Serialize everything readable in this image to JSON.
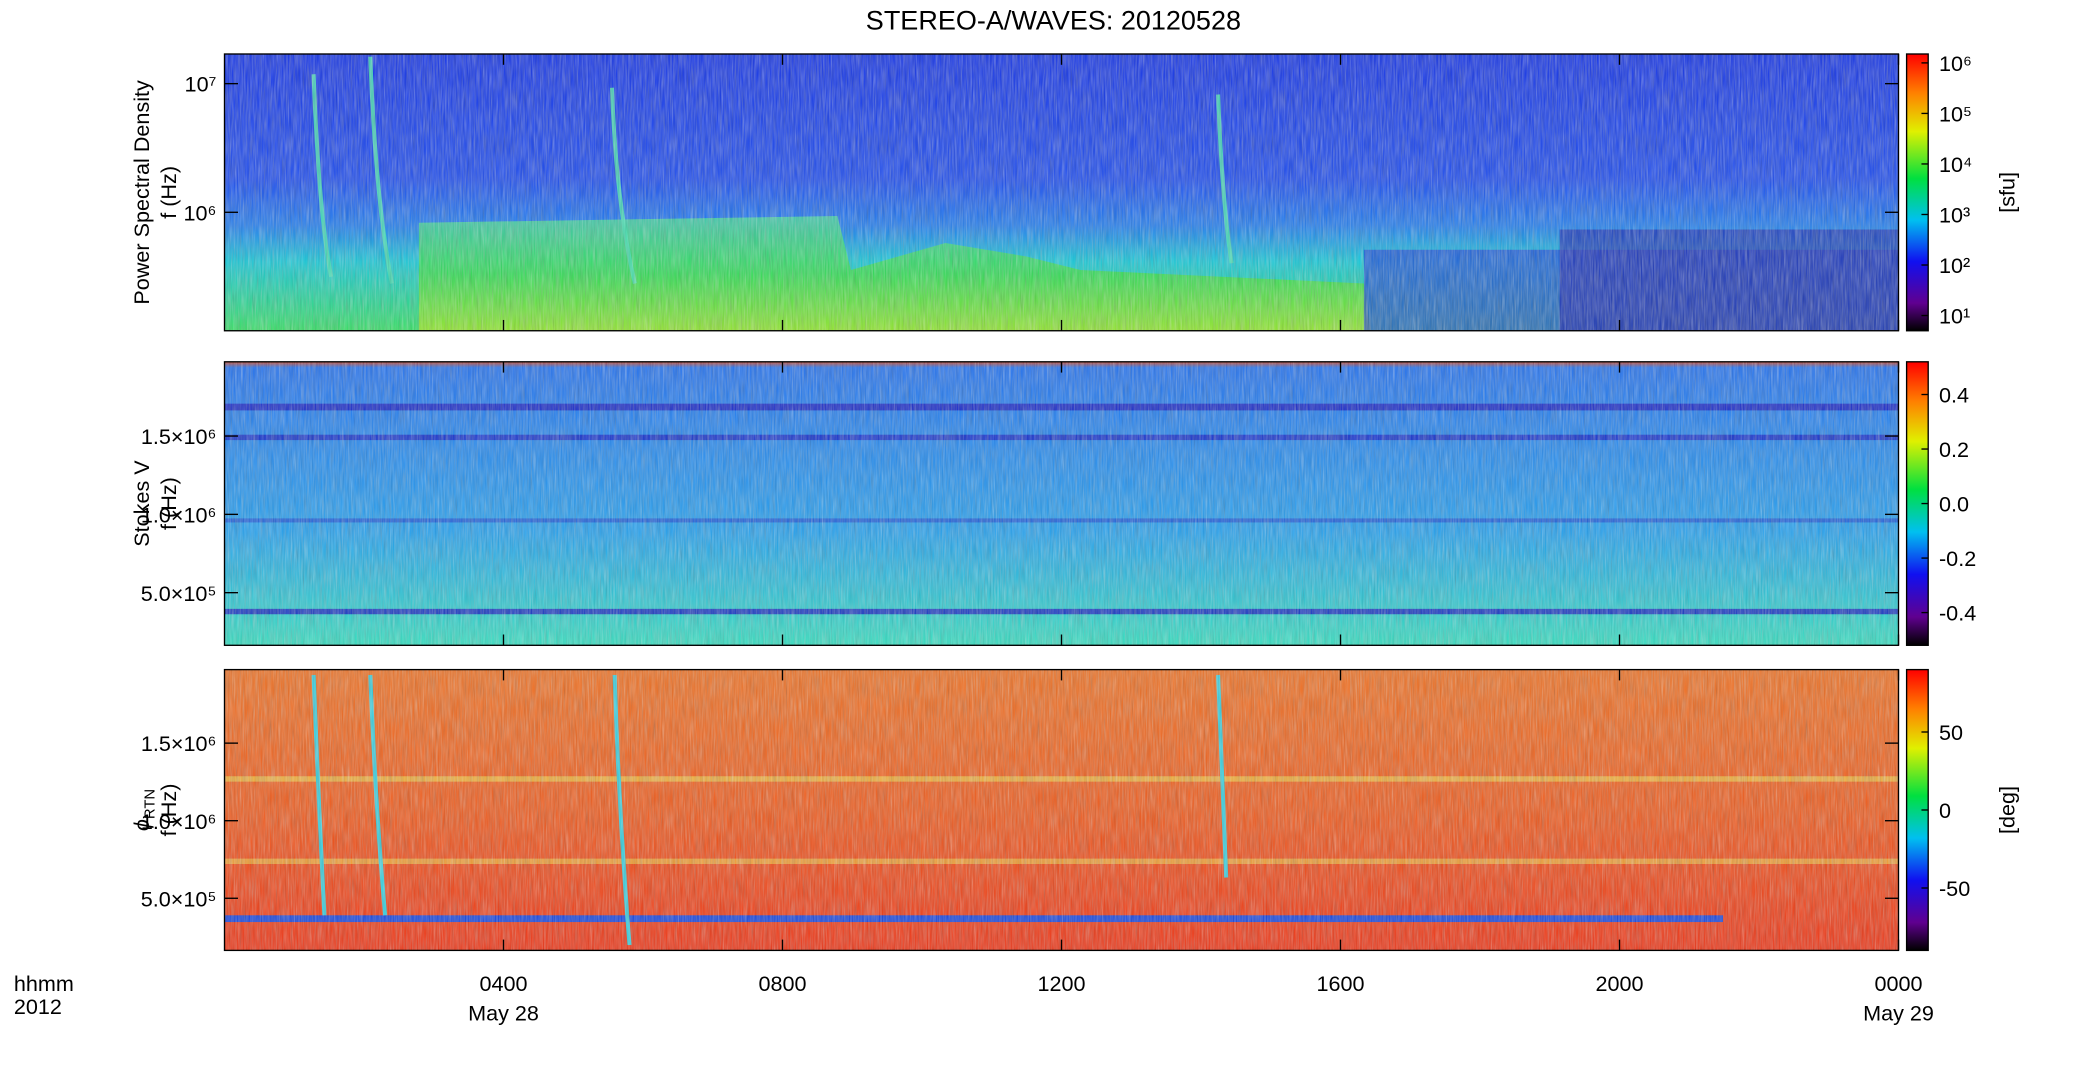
{
  "title": "STEREO-A/WAVES: 20120528",
  "x_axis": {
    "xlim": [
      0,
      24
    ],
    "xticks": [
      {
        "value": 4,
        "label": "0400"
      },
      {
        "value": 8,
        "label": "0800"
      },
      {
        "value": 12,
        "label": "1200"
      },
      {
        "value": 16,
        "label": "1600"
      },
      {
        "value": 20,
        "label": "2000"
      },
      {
        "value": 24,
        "label": "0000"
      }
    ],
    "date_labels": [
      {
        "value": 4,
        "label": "May 28"
      },
      {
        "value": 24,
        "label": "May 29"
      }
    ],
    "unit_labels": [
      "hhmm",
      "2012"
    ]
  },
  "chart_data": [
    {
      "type": "spectrogram",
      "ylabel": [
        "Power Spectral Density",
        "f (Hz)"
      ],
      "ylog": true,
      "ylim": [
        120000,
        17000000
      ],
      "yticks": [
        {
          "value": 1000000,
          "label": "10⁶"
        },
        {
          "value": 10000000,
          "label": "10⁷"
        }
      ],
      "colorbar": {
        "label": "[sfu]",
        "log": true,
        "lim": [
          5,
          1500000
        ],
        "ticks": [
          {
            "value": 10,
            "label": "10¹"
          },
          {
            "value": 100,
            "label": "10²"
          },
          {
            "value": 1000,
            "label": "10³"
          },
          {
            "value": 10000,
            "label": "10⁴"
          },
          {
            "value": 100000,
            "label": "10⁵"
          },
          {
            "value": 1000000,
            "label": "10⁶"
          }
        ]
      }
    },
    {
      "type": "spectrogram",
      "ylabel": [
        "Stokes V",
        "f (Hz)"
      ],
      "ylog": false,
      "ylim": [
        164000,
        1974000
      ],
      "yticks": [
        {
          "value": 500000,
          "label": "5.0×10⁵"
        },
        {
          "value": 1000000,
          "label": "1.0×10⁶"
        },
        {
          "value": 1500000,
          "label": "1.5×10⁶"
        }
      ],
      "colorbar": {
        "log": false,
        "lim": [
          -0.52,
          0.52
        ],
        "ticks": [
          {
            "value": -0.4,
            "label": "-0.4"
          },
          {
            "value": -0.2,
            "label": "-0.2"
          },
          {
            "value": 0,
            "label": "0.0"
          },
          {
            "value": 0.2,
            "label": "0.2"
          },
          {
            "value": 0.4,
            "label": "0.4"
          }
        ]
      }
    },
    {
      "type": "spectrogram",
      "ylabel_symbol": "ϕ",
      "ylabel_subscript": "RTN",
      "ylabel": [
        "f (Hz)"
      ],
      "ylog": false,
      "ylim": [
        164000,
        1974000
      ],
      "yticks": [
        {
          "value": 500000,
          "label": "5.0×10⁵"
        },
        {
          "value": 1000000,
          "label": "1.0×10⁶"
        },
        {
          "value": 1500000,
          "label": "1.5×10⁶"
        }
      ],
      "colorbar": {
        "label": "[deg]",
        "log": false,
        "lim": [
          -90,
          90
        ],
        "ticks": [
          -50,
          0,
          50
        ]
      }
    }
  ]
}
